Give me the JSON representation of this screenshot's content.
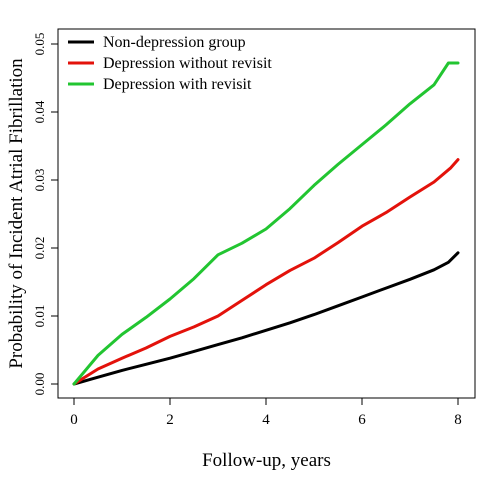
{
  "chart_data": {
    "type": "line",
    "title": "",
    "xlabel": "Follow-up, years",
    "ylabel": "Probability of Incident Atrial Fibrillation",
    "xlim": [
      0,
      8
    ],
    "ylim": [
      0,
      0.05
    ],
    "xticks": [
      0,
      2,
      4,
      6,
      8
    ],
    "xtick_labels": [
      "0",
      "2",
      "4",
      "6",
      "8"
    ],
    "yticks": [
      0,
      0.01,
      0.02,
      0.03,
      0.04,
      0.05
    ],
    "ytick_labels": [
      "0.00",
      "0.01",
      "0.02",
      "0.03",
      "0.04",
      "0.05"
    ],
    "grid": false,
    "legend_position": "top-left",
    "series": [
      {
        "name": "Non-depression group",
        "color": "#000000",
        "x": [
          0,
          0.5,
          1,
          1.5,
          2,
          2.5,
          3,
          3.5,
          4,
          4.5,
          5,
          5.5,
          6,
          6.5,
          7,
          7.5,
          7.8,
          8
        ],
        "y": [
          0,
          0.001,
          0.002,
          0.0029,
          0.0038,
          0.0048,
          0.0058,
          0.0068,
          0.0079,
          0.009,
          0.0102,
          0.0115,
          0.0128,
          0.0141,
          0.0154,
          0.0168,
          0.0179,
          0.0193
        ]
      },
      {
        "name": "Depression without revisit",
        "color": "#e3120b",
        "x": [
          0,
          0.5,
          1,
          1.5,
          2,
          2.5,
          3,
          3.5,
          4,
          4.5,
          5,
          5.5,
          6,
          6.5,
          7,
          7.5,
          7.85,
          8
        ],
        "y": [
          0,
          0.0022,
          0.0038,
          0.0053,
          0.007,
          0.0084,
          0.01,
          0.0123,
          0.0146,
          0.0167,
          0.0185,
          0.0208,
          0.0232,
          0.0252,
          0.0275,
          0.0297,
          0.0318,
          0.033
        ]
      },
      {
        "name": "Depression with revisit",
        "color": "#22c531",
        "x": [
          0,
          0.5,
          1,
          1.5,
          2,
          2.5,
          3,
          3.5,
          4,
          4.5,
          5,
          5.5,
          6,
          6.5,
          7,
          7.5,
          7.8,
          8
        ],
        "y": [
          0,
          0.0042,
          0.0073,
          0.0098,
          0.0125,
          0.0155,
          0.019,
          0.0207,
          0.0228,
          0.0258,
          0.0292,
          0.0323,
          0.0352,
          0.0381,
          0.0412,
          0.044,
          0.0472,
          0.0472
        ]
      }
    ]
  }
}
